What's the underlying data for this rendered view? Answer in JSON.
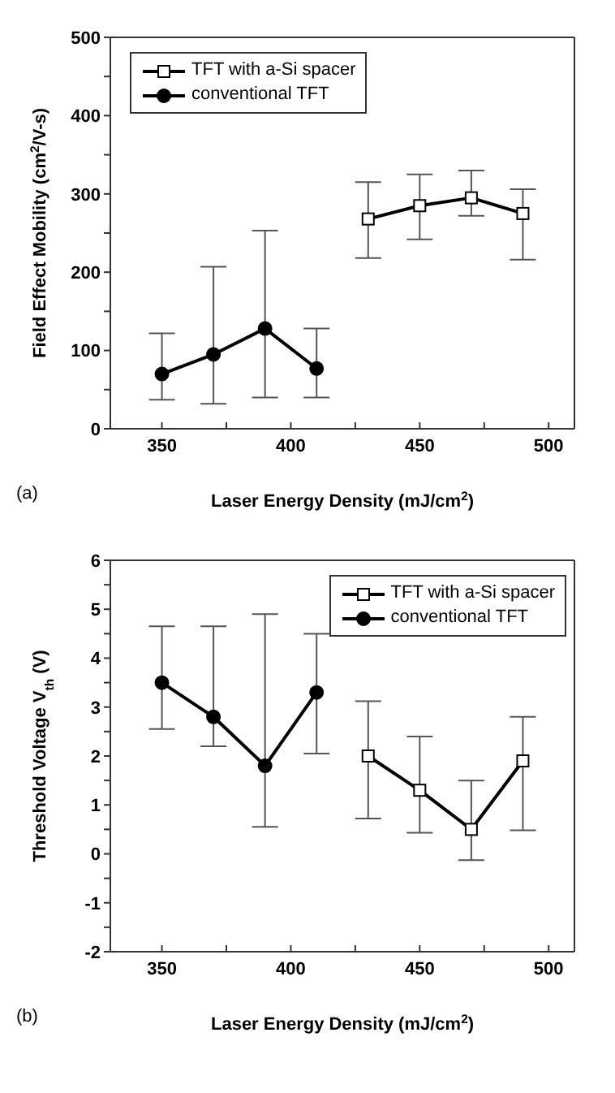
{
  "chart_data": [
    {
      "type": "line",
      "xlabel": "Laser Energy Density (mJ/cm$^{2}$)",
      "ylabel": "Field Effect Mobility (cm$^{2}$/V-s)",
      "annotations": [
        "(a)"
      ],
      "legend": "top left",
      "line_style": "solid",
      "xlim": [
        330,
        510
      ],
      "xticks": [
        350,
        {
          "value": 375,
          "label": null
        },
        400,
        {
          "value": 425,
          "label": null
        },
        450,
        {
          "value": 475,
          "label": null
        },
        500
      ],
      "ylim": [
        0,
        500
      ],
      "yticks": [
        0,
        {
          "value": 50,
          "label": null
        },
        100,
        {
          "value": 150,
          "label": null
        },
        200,
        {
          "value": 250,
          "label": null
        },
        300,
        {
          "value": 350,
          "label": null
        },
        400,
        {
          "value": 450,
          "label": null
        },
        500
      ],
      "series": [
        {
          "name": "TFT with a-Si spacer",
          "color": "#000000",
          "marker": "square",
          "x": [
            430,
            450,
            470,
            490
          ],
          "values": [
            268,
            285,
            295,
            275
          ],
          "errors": [
            [
              218,
              315
            ],
            [
              242,
              325
            ],
            [
              272,
              330
            ],
            [
              216,
              306
            ]
          ]
        },
        {
          "name": "conventional TFT",
          "color": "#000000",
          "marker": "circle",
          "x": [
            350,
            370,
            390,
            410
          ],
          "values": [
            70,
            95,
            128,
            77
          ],
          "errors": [
            [
              37,
              122
            ],
            [
              32,
              207
            ],
            [
              40,
              253
            ],
            [
              40,
              128
            ]
          ]
        }
      ]
    },
    {
      "type": "line",
      "xlabel": "Laser Energy Density (mJ/cm$^{2}$)",
      "ylabel": "Threshold Voltage V$_{th}$ (V)",
      "annotations": [
        "(b)"
      ],
      "legend": "top right",
      "line_style": "solid",
      "xlim": [
        330,
        510
      ],
      "xticks": [
        350,
        {
          "value": 375,
          "label": null
        },
        400,
        {
          "value": 425,
          "label": null
        },
        450,
        {
          "value": 475,
          "label": null
        },
        500
      ],
      "ylim": [
        -2,
        6
      ],
      "yticks": [
        -2,
        {
          "value": -1.5,
          "label": null
        },
        -1,
        {
          "value": -0.5,
          "label": null
        },
        0,
        {
          "value": 0.5,
          "label": null
        },
        1,
        {
          "value": 1.5,
          "label": null
        },
        2,
        {
          "value": 2.5,
          "label": null
        },
        3,
        {
          "value": 3.5,
          "label": null
        },
        4,
        {
          "value": 4.5,
          "label": null
        },
        5,
        {
          "value": 5.5,
          "label": null
        },
        6
      ],
      "series": [
        {
          "name": "TFT with a-Si spacer",
          "color": "#000000",
          "marker": "square",
          "x": [
            430,
            450,
            470,
            490
          ],
          "values": [
            2.0,
            1.3,
            0.5,
            1.9
          ],
          "errors": [
            [
              0.72,
              3.12
            ],
            [
              0.43,
              2.4
            ],
            [
              -0.13,
              1.5
            ],
            [
              0.48,
              2.8
            ]
          ]
        },
        {
          "name": "conventional TFT",
          "color": "#000000",
          "marker": "circle",
          "x": [
            350,
            370,
            390,
            410
          ],
          "values": [
            3.5,
            2.8,
            1.8,
            3.3
          ],
          "errors": [
            [
              2.55,
              4.65
            ],
            [
              2.2,
              4.65
            ],
            [
              0.55,
              4.9
            ],
            [
              2.05,
              4.5
            ]
          ]
        }
      ]
    }
  ]
}
